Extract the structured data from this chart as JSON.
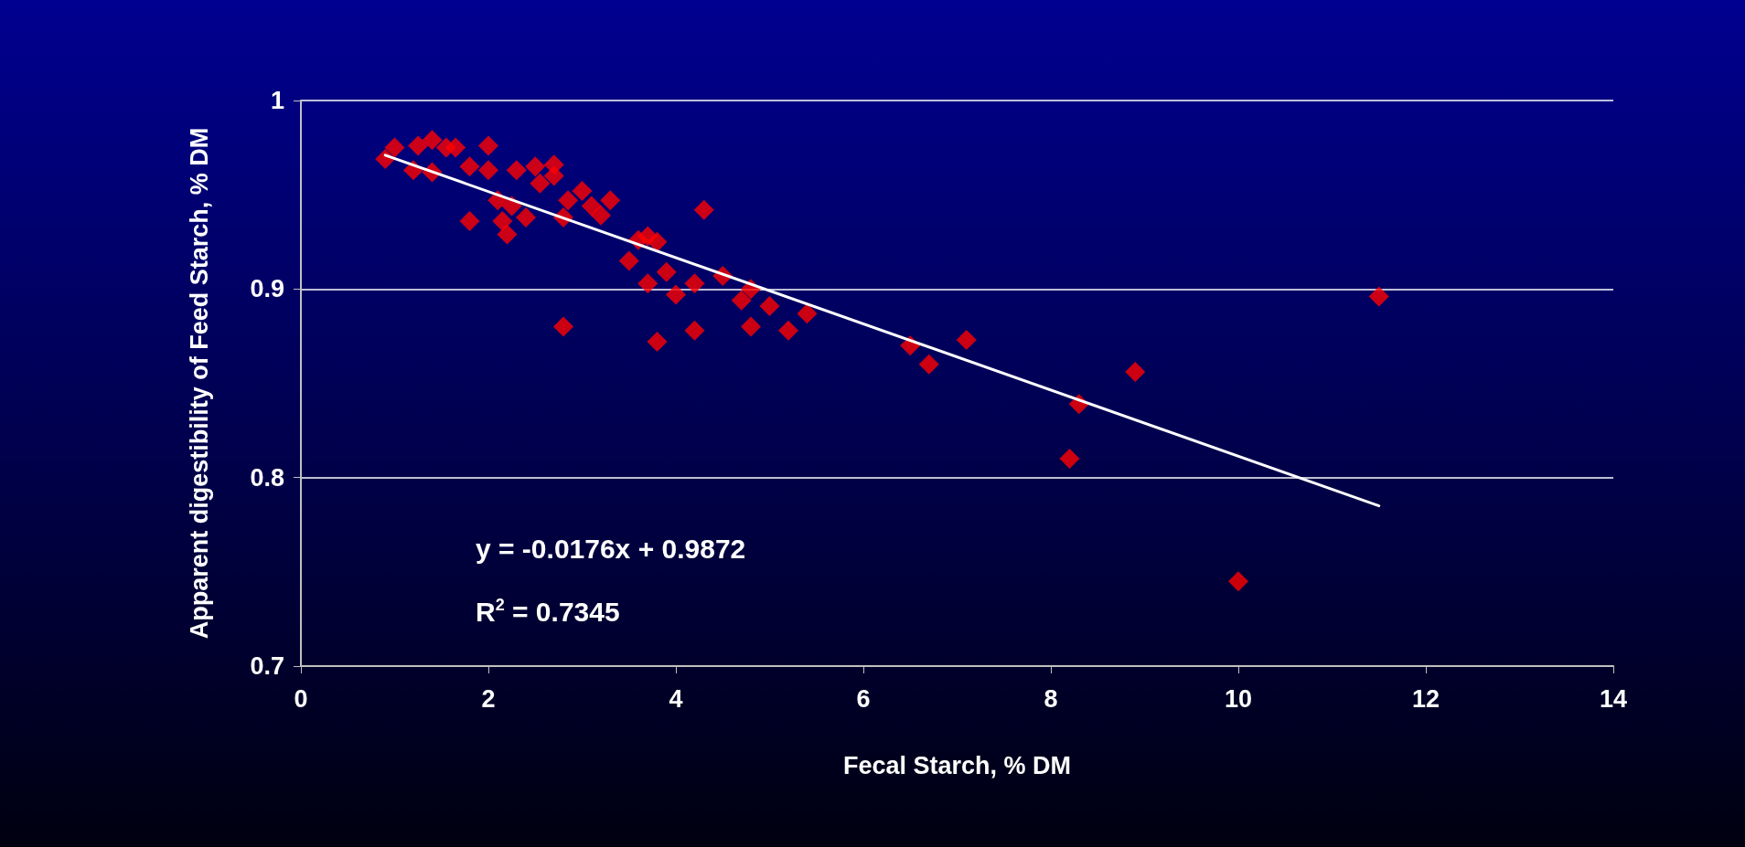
{
  "chart_data": {
    "type": "scatter",
    "xlabel": "Fecal Starch, % DM",
    "ylabel": "Apparent digestibility of Feed Starch, % DM",
    "marker": "diamond",
    "grid": "y",
    "xlim": [
      0,
      14
    ],
    "xticks": [
      0,
      2,
      4,
      6,
      8,
      10,
      12,
      14
    ],
    "ylim": [
      0.7,
      1
    ],
    "yticks": [
      0.7,
      0.8,
      0.9,
      1
    ],
    "annotations": [
      "y = -0.0176x + 0.9872",
      "R$^{2}$ = 0.7345"
    ],
    "series": [
      {
        "color": "#ff0000",
        "x": [
          0.9,
          1.0,
          1.2,
          1.25,
          1.35,
          1.4,
          1.4,
          1.55,
          1.65,
          1.8,
          1.8,
          2.0,
          2.0,
          2.1,
          2.15,
          2.2,
          2.25,
          2.3,
          2.4,
          2.5,
          2.55,
          2.7,
          2.7,
          2.8,
          2.8,
          2.85,
          3.0,
          3.1,
          3.2,
          3.3,
          3.5,
          3.6,
          3.7,
          3.7,
          3.8,
          3.8,
          3.9,
          4.0,
          4.2,
          4.2,
          4.3,
          4.5,
          4.7,
          4.8,
          4.8,
          5.0,
          5.2,
          5.4,
          6.5,
          6.7,
          7.1,
          8.2,
          8.3,
          8.9,
          10.0,
          11.5
        ],
        "values": [
          0.969,
          0.975,
          0.963,
          0.976,
          null,
          0.979,
          0.962,
          0.975,
          0.975,
          0.965,
          0.936,
          0.976,
          0.963,
          0.947,
          0.936,
          0.929,
          0.944,
          0.963,
          0.938,
          0.965,
          0.956,
          0.966,
          0.96,
          0.938,
          0.88,
          0.947,
          0.952,
          0.944,
          0.939,
          0.947,
          0.915,
          0.926,
          0.928,
          0.903,
          0.925,
          0.872,
          0.909,
          0.897,
          0.903,
          0.878,
          0.942,
          0.907,
          0.894,
          0.9,
          0.88,
          0.891,
          0.878,
          0.887,
          0.87,
          0.86,
          0.873,
          0.81,
          0.839,
          0.856,
          0.745,
          0.896
        ]
      },
      {
        "type": "line",
        "color": "#ffffff",
        "marker": "none",
        "x": [
          0.9,
          11.5
        ],
        "values": [
          0.971,
          0.785
        ]
      }
    ]
  }
}
